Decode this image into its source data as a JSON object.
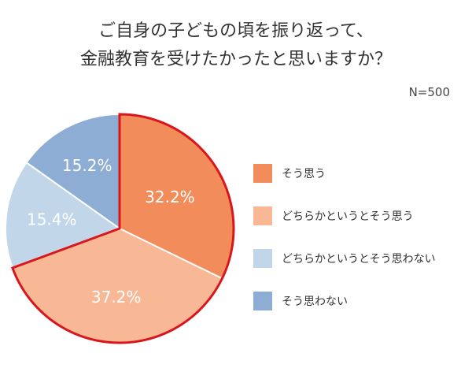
{
  "title": {
    "line1": "ご自身の子どもの頃を振り返って、",
    "line2": "金融教育を受けたかったと思いますか？"
  },
  "sample_size": "N=500",
  "chart_data": {
    "type": "pie",
    "title": "ご自身の子どもの頃を振り返って、金融教育を受けたかったと思いますか？",
    "slices": [
      {
        "name": "そう思う",
        "value": 32.2,
        "label": "32.2%",
        "color": "#f28c5a"
      },
      {
        "name": "どちらかというとそう思う",
        "value": 37.2,
        "label": "37.2%",
        "color": "#f8b895"
      },
      {
        "name": "どちらかというとそう思わない",
        "value": 15.4,
        "label": "15.4%",
        "color": "#c2d6ea"
      },
      {
        "name": "そう思わない",
        "value": 15.2,
        "label": "15.2%",
        "color": "#8eadd4"
      }
    ],
    "highlight_color": "#d9161c",
    "legend_placement": "right"
  }
}
